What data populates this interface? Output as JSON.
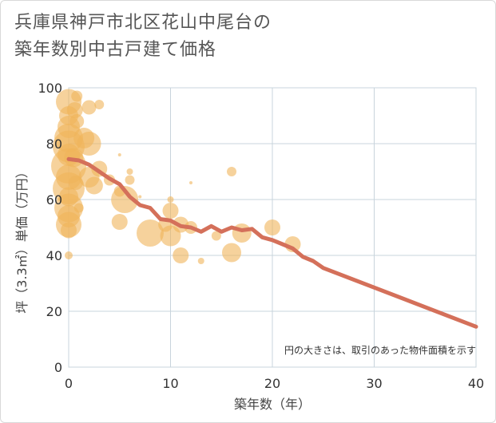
{
  "title_lines": [
    "兵庫県神戸市北区花山中尾台の",
    "築年数別中古戸建て価格"
  ],
  "chart_data": {
    "type": "scatter",
    "xlabel": "築年数（年）",
    "ylabel": "坪（3.3㎡）単価（万円）",
    "xlim": [
      0,
      40
    ],
    "ylim": [
      0,
      100
    ],
    "xticks": [
      0,
      10,
      20,
      30,
      40
    ],
    "yticks": [
      0,
      20,
      40,
      60,
      80,
      100
    ],
    "grid": true,
    "note": "円の大きさは、取引のあった物件面積を示す",
    "colors": {
      "bubble": "#f0b45a",
      "trend": "#d4705a",
      "grid": "#c8d4dc"
    },
    "bubbles": [
      {
        "x": 0,
        "y": 95,
        "s": 16
      },
      {
        "x": 0,
        "y": 90,
        "s": 12
      },
      {
        "x": 0,
        "y": 86,
        "s": 14
      },
      {
        "x": 0,
        "y": 82,
        "s": 18
      },
      {
        "x": 0,
        "y": 79,
        "s": 20
      },
      {
        "x": 0,
        "y": 76,
        "s": 14
      },
      {
        "x": 0,
        "y": 72,
        "s": 22
      },
      {
        "x": 0,
        "y": 68,
        "s": 16
      },
      {
        "x": 0,
        "y": 64,
        "s": 20
      },
      {
        "x": 0,
        "y": 61,
        "s": 12
      },
      {
        "x": 0,
        "y": 57,
        "s": 18
      },
      {
        "x": 0,
        "y": 54,
        "s": 14
      },
      {
        "x": 0,
        "y": 51,
        "s": 16
      },
      {
        "x": 0,
        "y": 49,
        "s": 10
      },
      {
        "x": 0,
        "y": 40,
        "s": 5
      },
      {
        "x": 0.6,
        "y": 92,
        "s": 10
      },
      {
        "x": 0.8,
        "y": 88,
        "s": 9
      },
      {
        "x": 0.8,
        "y": 97,
        "s": 7
      },
      {
        "x": 0.5,
        "y": 75,
        "s": 12
      },
      {
        "x": 0.7,
        "y": 66,
        "s": 9
      },
      {
        "x": 1,
        "y": 57,
        "s": 6
      },
      {
        "x": 1.5,
        "y": 82,
        "s": 13
      },
      {
        "x": 2,
        "y": 80,
        "s": 15
      },
      {
        "x": 2,
        "y": 93,
        "s": 9
      },
      {
        "x": 2,
        "y": 68,
        "s": 13
      },
      {
        "x": 2.5,
        "y": 65,
        "s": 11
      },
      {
        "x": 3,
        "y": 71,
        "s": 10
      },
      {
        "x": 3,
        "y": 94,
        "s": 6
      },
      {
        "x": 4,
        "y": 67,
        "s": 7
      },
      {
        "x": 5,
        "y": 63,
        "s": 7
      },
      {
        "x": 5,
        "y": 76,
        "s": 2
      },
      {
        "x": 5.5,
        "y": 60,
        "s": 17
      },
      {
        "x": 5,
        "y": 52,
        "s": 10
      },
      {
        "x": 6,
        "y": 70,
        "s": 4
      },
      {
        "x": 6,
        "y": 67,
        "s": 6
      },
      {
        "x": 7,
        "y": 61,
        "s": 2
      },
      {
        "x": 8,
        "y": 48,
        "s": 17
      },
      {
        "x": 9.5,
        "y": 51,
        "s": 9
      },
      {
        "x": 10,
        "y": 60,
        "s": 4
      },
      {
        "x": 10,
        "y": 56,
        "s": 10
      },
      {
        "x": 10,
        "y": 47,
        "s": 13
      },
      {
        "x": 11,
        "y": 51,
        "s": 10
      },
      {
        "x": 11,
        "y": 40,
        "s": 10
      },
      {
        "x": 12,
        "y": 66,
        "s": 2
      },
      {
        "x": 12,
        "y": 50,
        "s": 8
      },
      {
        "x": 13,
        "y": 38,
        "s": 4
      },
      {
        "x": 14.5,
        "y": 47,
        "s": 6
      },
      {
        "x": 16,
        "y": 70,
        "s": 6
      },
      {
        "x": 16,
        "y": 41,
        "s": 12
      },
      {
        "x": 17,
        "y": 48,
        "s": 12
      },
      {
        "x": 20,
        "y": 50,
        "s": 10
      },
      {
        "x": 22,
        "y": 44,
        "s": 10
      }
    ],
    "trend": [
      {
        "x": 0,
        "y": 74.5
      },
      {
        "x": 1,
        "y": 74
      },
      {
        "x": 2,
        "y": 72.5
      },
      {
        "x": 3,
        "y": 70
      },
      {
        "x": 4,
        "y": 67.5
      },
      {
        "x": 5,
        "y": 65.5
      },
      {
        "x": 6,
        "y": 61
      },
      {
        "x": 7,
        "y": 58
      },
      {
        "x": 8,
        "y": 57
      },
      {
        "x": 9,
        "y": 53
      },
      {
        "x": 10,
        "y": 52.5
      },
      {
        "x": 11,
        "y": 50.5
      },
      {
        "x": 12,
        "y": 50
      },
      {
        "x": 13,
        "y": 48.5
      },
      {
        "x": 14,
        "y": 50.5
      },
      {
        "x": 15,
        "y": 48.5
      },
      {
        "x": 16,
        "y": 50
      },
      {
        "x": 17,
        "y": 49
      },
      {
        "x": 18,
        "y": 49.5
      },
      {
        "x": 19,
        "y": 46.5
      },
      {
        "x": 20,
        "y": 45.5
      },
      {
        "x": 21,
        "y": 44
      },
      {
        "x": 22,
        "y": 42.5
      },
      {
        "x": 23,
        "y": 39.5
      },
      {
        "x": 24,
        "y": 38
      },
      {
        "x": 25,
        "y": 35.5
      },
      {
        "x": 40,
        "y": 14.5
      }
    ]
  }
}
